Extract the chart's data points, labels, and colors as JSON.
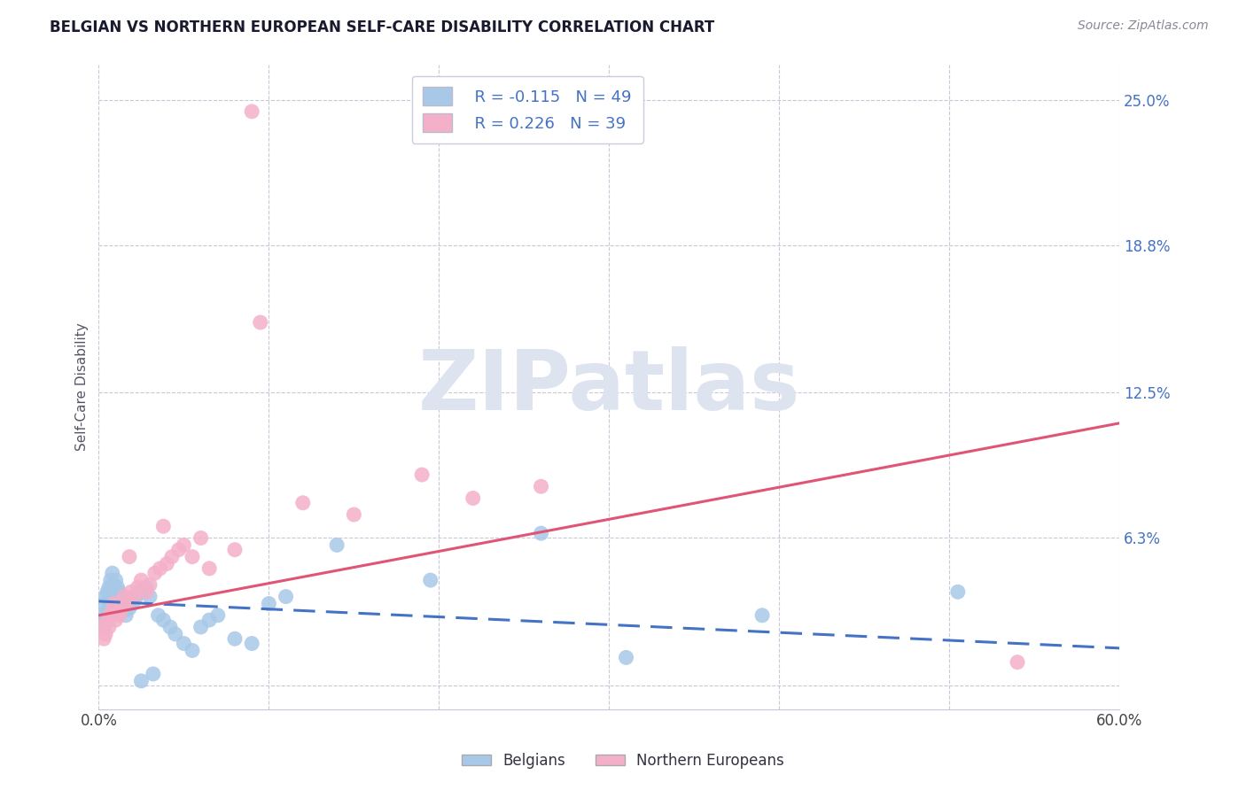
{
  "title": "BELGIAN VS NORTHERN EUROPEAN SELF-CARE DISABILITY CORRELATION CHART",
  "source": "Source: ZipAtlas.com",
  "ylabel": "Self-Care Disability",
  "xlim": [
    0.0,
    0.6
  ],
  "ylim": [
    -0.01,
    0.265
  ],
  "ytick_vals": [
    0.0,
    0.063,
    0.125,
    0.188,
    0.25
  ],
  "ytick_labels": [
    "",
    "6.3%",
    "12.5%",
    "18.8%",
    "25.0%"
  ],
  "xtick_vals": [
    0.0,
    0.1,
    0.2,
    0.3,
    0.4,
    0.5,
    0.6
  ],
  "xtick_labels": [
    "0.0%",
    "",
    "",
    "",
    "",
    "",
    "60.0%"
  ],
  "belgians_R": -0.115,
  "belgians_N": 49,
  "northern_R": 0.226,
  "northern_N": 39,
  "belgian_color": "#a8c8e8",
  "northern_color": "#f4b0c8",
  "trend_blue": "#4472c4",
  "trend_pink": "#e05575",
  "label_blue": "#4472c4",
  "background_color": "#ffffff",
  "grid_color": "#c8c8d8",
  "watermark_color": "#dde4ef",
  "title_color": "#1a1a2e",
  "source_color": "#888899",
  "axis_label_color": "#555566",
  "right_tick_color": "#4472c4",
  "bel_trend_start_y": 0.036,
  "bel_trend_end_y": 0.016,
  "nor_trend_start_y": 0.03,
  "nor_trend_end_y": 0.112,
  "bel_pts_x": [
    0.002,
    0.003,
    0.003,
    0.004,
    0.004,
    0.005,
    0.005,
    0.006,
    0.006,
    0.007,
    0.007,
    0.008,
    0.008,
    0.009,
    0.01,
    0.01,
    0.011,
    0.012,
    0.013,
    0.014,
    0.015,
    0.016,
    0.018,
    0.02,
    0.022,
    0.025,
    0.028,
    0.03,
    0.035,
    0.038,
    0.042,
    0.045,
    0.05,
    0.055,
    0.06,
    0.065,
    0.07,
    0.08,
    0.09,
    0.1,
    0.11,
    0.14,
    0.195,
    0.26,
    0.31,
    0.39,
    0.505,
    0.025,
    0.032
  ],
  "bel_pts_y": [
    0.03,
    0.025,
    0.035,
    0.028,
    0.038,
    0.032,
    0.04,
    0.035,
    0.042,
    0.038,
    0.045,
    0.04,
    0.048,
    0.043,
    0.038,
    0.045,
    0.042,
    0.04,
    0.038,
    0.035,
    0.032,
    0.03,
    0.033,
    0.035,
    0.038,
    0.04,
    0.042,
    0.038,
    0.03,
    0.028,
    0.025,
    0.022,
    0.018,
    0.015,
    0.025,
    0.028,
    0.03,
    0.02,
    0.018,
    0.035,
    0.038,
    0.06,
    0.045,
    0.065,
    0.012,
    0.03,
    0.04,
    0.002,
    0.005
  ],
  "nor_pts_x": [
    0.002,
    0.003,
    0.004,
    0.005,
    0.006,
    0.007,
    0.008,
    0.009,
    0.01,
    0.012,
    0.013,
    0.015,
    0.017,
    0.019,
    0.021,
    0.023,
    0.025,
    0.028,
    0.03,
    0.033,
    0.036,
    0.04,
    0.043,
    0.047,
    0.05,
    0.055,
    0.06,
    0.065,
    0.09,
    0.095,
    0.12,
    0.15,
    0.19,
    0.22,
    0.26,
    0.54,
    0.08,
    0.038,
    0.018
  ],
  "nor_pts_y": [
    0.025,
    0.02,
    0.022,
    0.028,
    0.025,
    0.03,
    0.032,
    0.035,
    0.028,
    0.03,
    0.032,
    0.038,
    0.035,
    0.04,
    0.038,
    0.042,
    0.045,
    0.04,
    0.043,
    0.048,
    0.05,
    0.052,
    0.055,
    0.058,
    0.06,
    0.055,
    0.063,
    0.05,
    0.245,
    0.155,
    0.078,
    0.073,
    0.09,
    0.08,
    0.085,
    0.01,
    0.058,
    0.068,
    0.055
  ]
}
